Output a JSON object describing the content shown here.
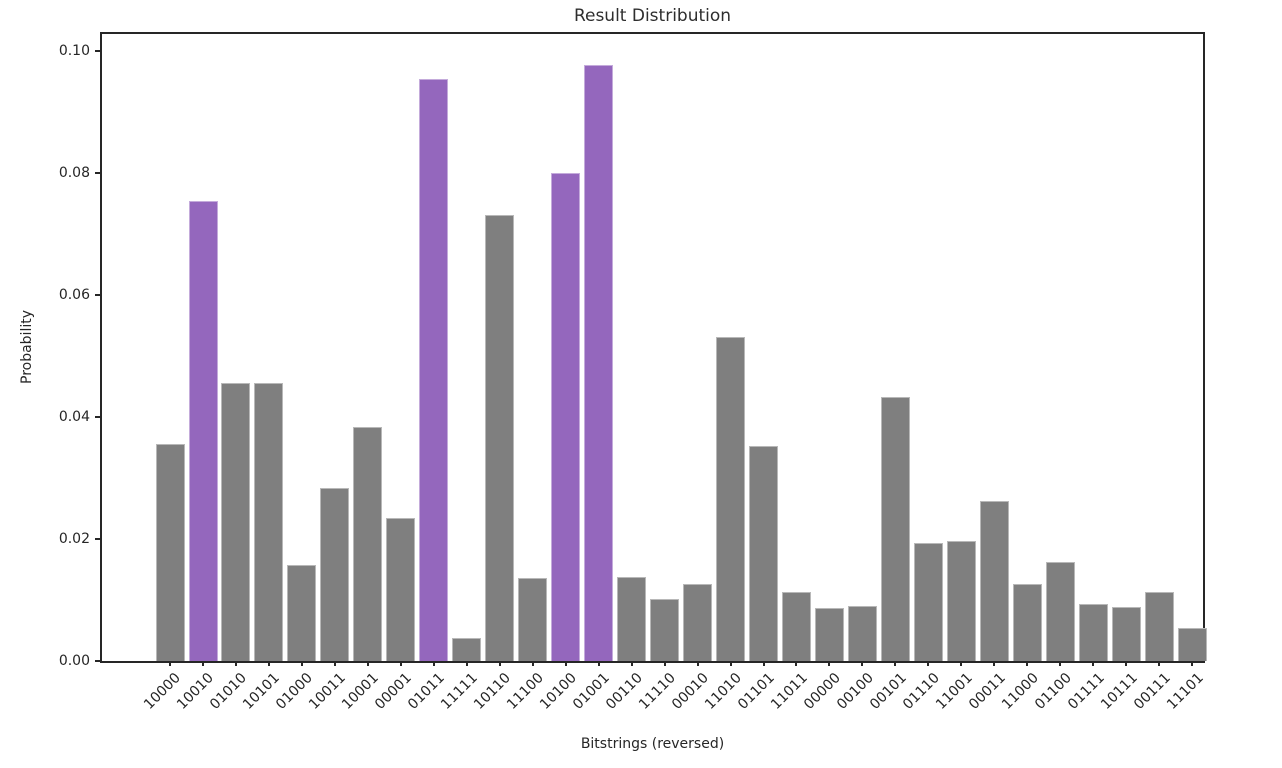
{
  "window": {
    "background_color": "#ffffff"
  },
  "chart_data": {
    "type": "bar",
    "title": "Result Distribution",
    "xlabel": "Bitstrings (reversed)",
    "ylabel": "Probability",
    "categories": [
      "10000",
      "10010",
      "01010",
      "10101",
      "01000",
      "10011",
      "10001",
      "00001",
      "01011",
      "11111",
      "10110",
      "11100",
      "10100",
      "01001",
      "00110",
      "11110",
      "00010",
      "11010",
      "01101",
      "11011",
      "00000",
      "00100",
      "00101",
      "01110",
      "11001",
      "00011",
      "11000",
      "01100",
      "01111",
      "10111",
      "00111",
      "11101"
    ],
    "values": [
      0.0356,
      0.0755,
      0.0456,
      0.0456,
      0.0158,
      0.0284,
      0.0384,
      0.0234,
      0.0955,
      0.0038,
      0.0732,
      0.0136,
      0.0801,
      0.0978,
      0.0138,
      0.0101,
      0.0127,
      0.0532,
      0.0353,
      0.0113,
      0.0087,
      0.0091,
      0.0433,
      0.0193,
      0.0197,
      0.0262,
      0.0127,
      0.0163,
      0.0093,
      0.0089,
      0.0113,
      0.0055
    ],
    "highlighted_categories": [
      "10010",
      "01011",
      "10100",
      "01001"
    ],
    "highlighted_indices": [
      1,
      8,
      12,
      13
    ],
    "bar_color_default": "#7f7f7f",
    "bar_color_highlight": "#9467bd",
    "y_ticks": [
      0.0,
      0.02,
      0.04,
      0.06,
      0.08,
      0.1
    ],
    "y_tick_labels": [
      "0.00",
      "0.02",
      "0.04",
      "0.06",
      "0.08",
      "0.10"
    ],
    "ylim": [
      0,
      0.1028
    ],
    "xtick_rotation_deg": 45,
    "grid": false,
    "legend": "none",
    "axis_color": "#262626"
  }
}
